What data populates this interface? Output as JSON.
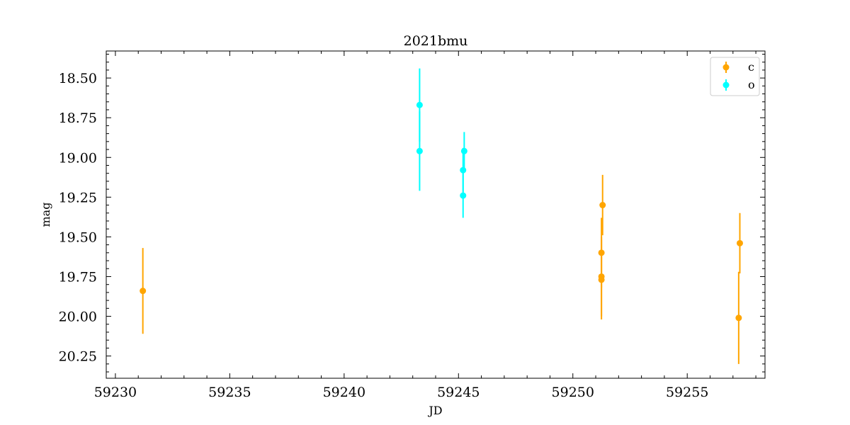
{
  "chart_data": {
    "type": "scatter",
    "title": "2021bmu",
    "xlabel": "JD",
    "ylabel": "mag",
    "xlim": [
      59229.6,
      59258.4
    ],
    "ylim": [
      20.39,
      18.33
    ],
    "y_inverted": true,
    "grid": false,
    "legend_position": "top-right",
    "xticks": [
      59230,
      59235,
      59240,
      59245,
      59250,
      59255
    ],
    "yticks": [
      18.5,
      18.75,
      19.0,
      19.25,
      19.5,
      19.75,
      20.0,
      20.25
    ],
    "series": [
      {
        "name": "c",
        "color": "#ffa500",
        "points": [
          {
            "x": 59231.2,
            "y": 19.84,
            "err": 0.27
          },
          {
            "x": 59251.3,
            "y": 19.3,
            "err": 0.19
          },
          {
            "x": 59251.25,
            "y": 19.6,
            "err": 0.22
          },
          {
            "x": 59251.25,
            "y": 19.75,
            "err": 0.25
          },
          {
            "x": 59251.25,
            "y": 19.77,
            "err": 0.25
          },
          {
            "x": 59257.3,
            "y": 19.54,
            "err": 0.19
          },
          {
            "x": 59257.25,
            "y": 20.01,
            "err": 0.29
          }
        ]
      },
      {
        "name": "o",
        "color": "#00ffff",
        "points": [
          {
            "x": 59243.3,
            "y": 18.67,
            "err": 0.23
          },
          {
            "x": 59243.3,
            "y": 18.96,
            "err": 0.25
          },
          {
            "x": 59245.25,
            "y": 18.96,
            "err": 0.12
          },
          {
            "x": 59245.2,
            "y": 19.08,
            "err": 0.14
          },
          {
            "x": 59245.2,
            "y": 19.24,
            "err": 0.14
          }
        ]
      }
    ]
  }
}
